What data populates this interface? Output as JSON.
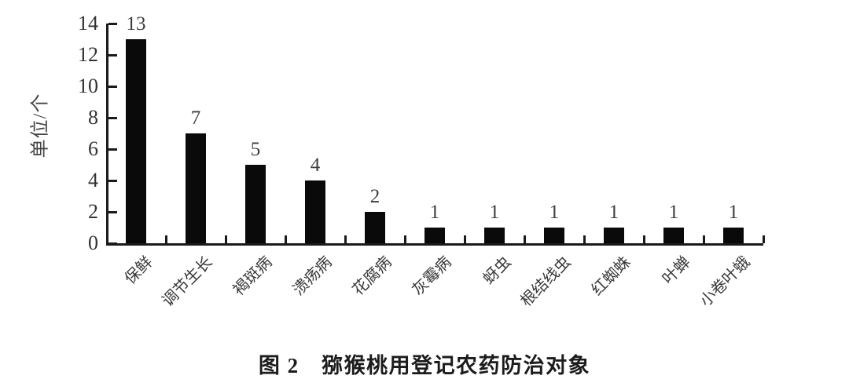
{
  "chart_data": {
    "type": "bar",
    "categories": [
      "保鲜",
      "调节生长",
      "褐斑病",
      "溃疡病",
      "花腐病",
      "灰霉病",
      "蚜虫",
      "根结线虫",
      "红蜘蛛",
      "叶蝉",
      "小卷叶蛾"
    ],
    "values": [
      13,
      7,
      5,
      4,
      2,
      1,
      1,
      1,
      1,
      1,
      1
    ],
    "value_labels": [
      "13",
      "7",
      "5",
      "4",
      "2",
      "1",
      "1",
      "1",
      "1",
      "1",
      "1"
    ],
    "title": "图 2　猕猴桃用登记农药防治对象",
    "xlabel": "",
    "ylabel": "单位/个",
    "ylim": [
      0,
      14
    ],
    "yticks": [
      0,
      2,
      4,
      6,
      8,
      10,
      12,
      14
    ],
    "bar_color": "#0a0a0a",
    "axis_color": "#1a1a1a",
    "background_color": "#ffffff",
    "grid": false,
    "legend": null,
    "x_tick_label_rotation_deg": 45
  }
}
